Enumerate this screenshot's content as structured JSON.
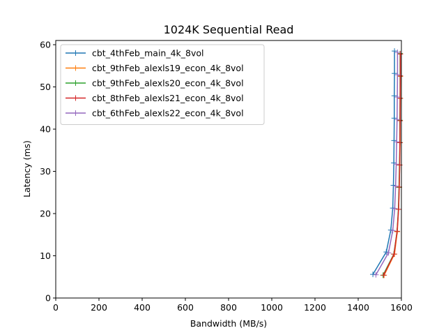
{
  "chart_data": {
    "type": "line",
    "title": "1024K  Sequential Read",
    "xlabel": "Bandwidth (MB/s)",
    "ylabel": "Latency (ms)",
    "xlim": [
      0,
      1600
    ],
    "ylim": [
      0,
      61
    ],
    "xticks": [
      0,
      200,
      400,
      600,
      800,
      1000,
      1200,
      1400,
      1600
    ],
    "yticks": [
      0,
      10,
      20,
      30,
      40,
      50,
      60
    ],
    "grid": false,
    "legend_position": "top-left",
    "marker": "+",
    "series": [
      {
        "name": "cbt_4thFeb_main_4k_8vol",
        "color": "#1f77b4",
        "points": [
          [
            1468,
            5.6
          ],
          [
            1530,
            10.9
          ],
          [
            1551,
            16.1
          ],
          [
            1560,
            21.3
          ],
          [
            1563,
            26.7
          ],
          [
            1565,
            32.0
          ],
          [
            1566,
            37.3
          ],
          [
            1567,
            42.6
          ],
          [
            1567,
            47.9
          ],
          [
            1568,
            53.2
          ],
          [
            1568,
            58.5
          ]
        ]
      },
      {
        "name": "cbt_9thFeb_alexls19_econ_4k_8vol",
        "color": "#ff7f0e",
        "points": [
          [
            1520,
            5.4
          ],
          [
            1568,
            10.4
          ],
          [
            1581,
            15.7
          ],
          [
            1587,
            21.0
          ],
          [
            1590,
            26.2
          ],
          [
            1592,
            31.5
          ],
          [
            1594,
            36.8
          ],
          [
            1594,
            42.0
          ],
          [
            1595,
            47.3
          ],
          [
            1595,
            52.5
          ],
          [
            1595,
            57.8
          ]
        ]
      },
      {
        "name": "cbt_9thFeb_alexls20_econ_4k_8vol",
        "color": "#2ca02c",
        "points": [
          [
            1515,
            5.4
          ],
          [
            1565,
            10.4
          ],
          [
            1580,
            15.8
          ],
          [
            1586,
            21.0
          ],
          [
            1589,
            26.2
          ],
          [
            1591,
            31.5
          ],
          [
            1593,
            36.8
          ],
          [
            1593,
            42.1
          ],
          [
            1594,
            47.3
          ],
          [
            1594,
            52.6
          ],
          [
            1594,
            57.9
          ]
        ]
      },
      {
        "name": "cbt_8thFeb_alexls21_econ_4k_8vol",
        "color": "#d62728",
        "points": [
          [
            1518,
            5.4
          ],
          [
            1566,
            10.4
          ],
          [
            1580,
            15.8
          ],
          [
            1587,
            21.0
          ],
          [
            1590,
            26.3
          ],
          [
            1592,
            31.5
          ],
          [
            1593,
            36.8
          ],
          [
            1594,
            42.0
          ],
          [
            1594,
            47.3
          ],
          [
            1595,
            52.6
          ],
          [
            1595,
            57.8
          ]
        ]
      },
      {
        "name": "cbt_6thFeb_alexls22_econ_4k_8vol",
        "color": "#9467bd",
        "points": [
          [
            1482,
            5.5
          ],
          [
            1540,
            10.7
          ],
          [
            1560,
            16.0
          ],
          [
            1569,
            21.2
          ],
          [
            1573,
            26.5
          ],
          [
            1576,
            31.7
          ],
          [
            1578,
            37.0
          ],
          [
            1580,
            42.3
          ],
          [
            1581,
            47.6
          ],
          [
            1582,
            52.9
          ],
          [
            1582,
            58.2
          ]
        ]
      }
    ]
  }
}
